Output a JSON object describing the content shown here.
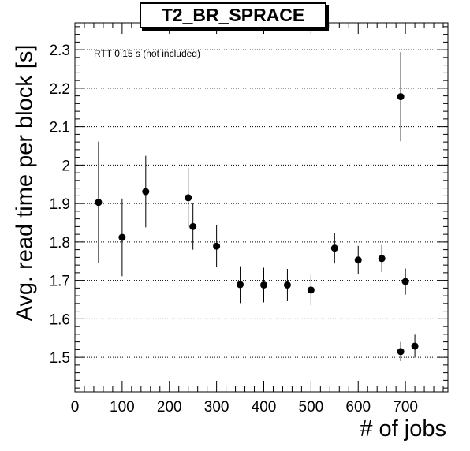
{
  "chart_data": {
    "type": "scatter",
    "title": "T2_BR_SPRACE",
    "xlabel": "# of jobs",
    "ylabel": "Avg. read time per block [s]",
    "annotation": "RTT 0.15 s (not included)",
    "xlim": [
      0,
      790
    ],
    "ylim": [
      1.41,
      2.37
    ],
    "xticks": [
      0,
      100,
      200,
      300,
      400,
      500,
      600,
      700
    ],
    "yticks": [
      1.5,
      1.6,
      1.7,
      1.8,
      1.9,
      2.0,
      2.1,
      2.2,
      2.3
    ],
    "yticklabels": [
      "1.5",
      "1.6",
      "1.7",
      "1.8",
      "1.9",
      "2",
      "2.1",
      "2.2",
      "2.3"
    ],
    "grid": "y-dotted",
    "marker_color": "#000000",
    "points": [
      {
        "x": 50,
        "y": 1.903,
        "yerr_low": 0.158,
        "yerr_high": 0.158
      },
      {
        "x": 100,
        "y": 1.812,
        "yerr_low": 0.101,
        "yerr_high": 0.101
      },
      {
        "x": 150,
        "y": 1.931,
        "yerr_low": 0.093,
        "yerr_high": 0.093
      },
      {
        "x": 240,
        "y": 1.915,
        "yerr_low": 0.077,
        "yerr_high": 0.077
      },
      {
        "x": 250,
        "y": 1.84,
        "yerr_low": 0.06,
        "yerr_high": 0.06
      },
      {
        "x": 300,
        "y": 1.789,
        "yerr_low": 0.055,
        "yerr_high": 0.055
      },
      {
        "x": 350,
        "y": 1.689,
        "yerr_low": 0.048,
        "yerr_high": 0.048
      },
      {
        "x": 400,
        "y": 1.688,
        "yerr_low": 0.045,
        "yerr_high": 0.045
      },
      {
        "x": 450,
        "y": 1.688,
        "yerr_low": 0.042,
        "yerr_high": 0.042
      },
      {
        "x": 500,
        "y": 1.675,
        "yerr_low": 0.04,
        "yerr_high": 0.04
      },
      {
        "x": 550,
        "y": 1.784,
        "yerr_low": 0.04,
        "yerr_high": 0.04
      },
      {
        "x": 600,
        "y": 1.753,
        "yerr_low": 0.037,
        "yerr_high": 0.037
      },
      {
        "x": 650,
        "y": 1.757,
        "yerr_low": 0.035,
        "yerr_high": 0.035
      },
      {
        "x": 690,
        "y": 2.178,
        "yerr_low": 0.116,
        "yerr_high": 0.116
      },
      {
        "x": 690,
        "y": 1.515,
        "yerr_low": 0.025,
        "yerr_high": 0.025
      },
      {
        "x": 700,
        "y": 1.697,
        "yerr_low": 0.034,
        "yerr_high": 0.034
      },
      {
        "x": 720,
        "y": 1.529,
        "yerr_low": 0.03,
        "yerr_high": 0.03
      }
    ]
  }
}
